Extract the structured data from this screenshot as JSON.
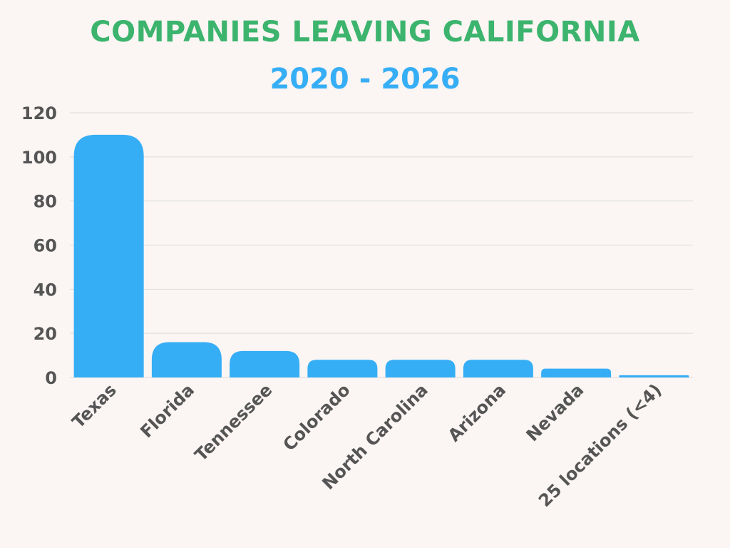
{
  "colors": {
    "title": "#3cb46e",
    "subtitle": "#36aef5",
    "bar": "#36aef5",
    "grid": "#dcdcdc",
    "text": "#555555",
    "background": "#fbf5f3"
  },
  "chart_data": {
    "type": "bar",
    "title": "COMPANIES LEAVING CALIFORNIA",
    "subtitle": "2020 - 2026",
    "xlabel": "",
    "ylabel": "",
    "categories": [
      "Texas",
      "Florida",
      "Tennessee",
      "Colorado",
      "North Carolina",
      "Arizona",
      "Nevada",
      "25 locations (<4)"
    ],
    "values": [
      110,
      16,
      12,
      8,
      8,
      8,
      4,
      1
    ],
    "ylim": [
      0,
      120
    ],
    "yticks": [
      0,
      20,
      40,
      60,
      80,
      100,
      120
    ],
    "grid": true,
    "legend": "none"
  }
}
